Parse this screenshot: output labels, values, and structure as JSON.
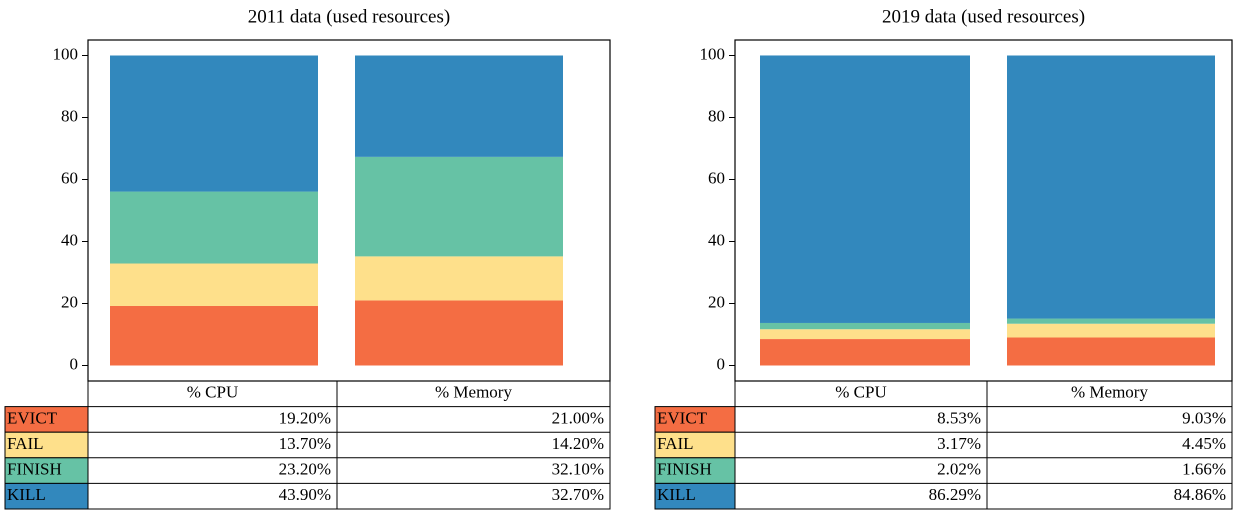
{
  "chart_data": [
    {
      "type": "bar",
      "stacked": true,
      "title": "2011 data (used resources)",
      "categories": [
        "% CPU",
        "% Memory"
      ],
      "series": [
        {
          "name": "EVICT",
          "color": "#f46d43",
          "values": [
            19.2,
            21.0
          ],
          "value_labels": [
            "19.20%",
            "21.00%"
          ]
        },
        {
          "name": "FAIL",
          "color": "#fee08b",
          "values": [
            13.7,
            14.2
          ],
          "value_labels": [
            "13.70%",
            "14.20%"
          ]
        },
        {
          "name": "FINISH",
          "color": "#66c2a5",
          "values": [
            23.2,
            32.1
          ],
          "value_labels": [
            "23.20%",
            "32.10%"
          ]
        },
        {
          "name": "KILL",
          "color": "#3288bd",
          "values": [
            43.9,
            32.7
          ],
          "value_labels": [
            "43.90%",
            "32.70%"
          ]
        }
      ],
      "ylim": [
        -5,
        105
      ],
      "yticks": [
        0,
        20,
        40,
        60,
        80,
        100
      ]
    },
    {
      "type": "bar",
      "stacked": true,
      "title": "2019 data (used resources)",
      "categories": [
        "% CPU",
        "% Memory"
      ],
      "series": [
        {
          "name": "EVICT",
          "color": "#f46d43",
          "values": [
            8.53,
            9.03
          ],
          "value_labels": [
            "8.53%",
            "9.03%"
          ]
        },
        {
          "name": "FAIL",
          "color": "#fee08b",
          "values": [
            3.17,
            4.45
          ],
          "value_labels": [
            "3.17%",
            "4.45%"
          ]
        },
        {
          "name": "FINISH",
          "color": "#66c2a5",
          "values": [
            2.02,
            1.66
          ],
          "value_labels": [
            "2.02%",
            "1.66%"
          ]
        },
        {
          "name": "KILL",
          "color": "#3288bd",
          "values": [
            86.29,
            84.86
          ],
          "value_labels": [
            "86.29%",
            "84.86%"
          ]
        }
      ],
      "ylim": [
        -5,
        105
      ],
      "yticks": [
        0,
        20,
        40,
        60,
        80,
        100
      ]
    }
  ]
}
